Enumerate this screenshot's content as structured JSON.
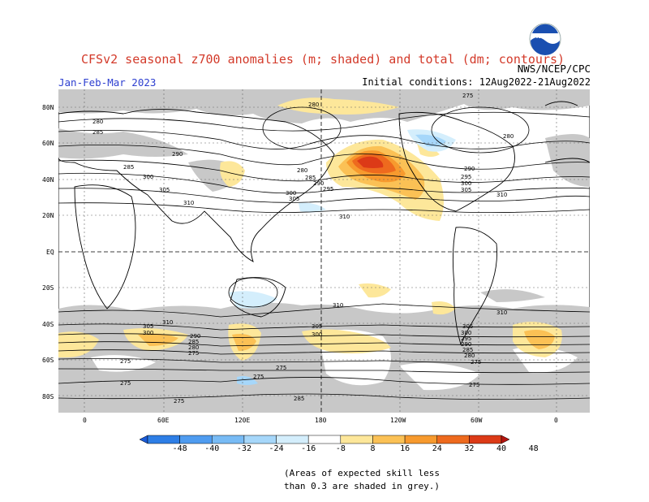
{
  "title": "CFSv2 seasonal z700 anomalies (m; shaded) and total (dm; contours)",
  "period": "Jan-Feb-Mar 2023",
  "agency": "NWS/NCEP/CPC",
  "initial_conditions": "Initial conditions: 12Aug2022-21Aug2022",
  "logo_text": "NOAA",
  "latitude_labels": [
    "80N",
    "60N",
    "40N",
    "20N",
    "EQ",
    "20S",
    "40S",
    "60S",
    "80S"
  ],
  "longitude_labels": [
    "0",
    "60E",
    "120E",
    "180",
    "120W",
    "60W",
    "0"
  ],
  "colorbar": {
    "labels": [
      "-48",
      "-40",
      "-32",
      "-24",
      "-16",
      "-8",
      "8",
      "16",
      "24",
      "32",
      "40",
      "48"
    ],
    "colors": [
      "#1a5ad6",
      "#2e7ee6",
      "#4f9cf0",
      "#78bbf5",
      "#a6d7fa",
      "#d4eefc",
      "#ffffff",
      "#fde79a",
      "#fbc155",
      "#f79a2e",
      "#ee6a1e",
      "#dc3a17",
      "#b4140f"
    ]
  },
  "contour_labels": [
    "275",
    "280",
    "285",
    "290",
    "295",
    "300",
    "305",
    "310"
  ],
  "skill_note_line1": "(Areas of expected skill less",
  "skill_note_line2": "than 0.3 are shaded in grey.)"
}
